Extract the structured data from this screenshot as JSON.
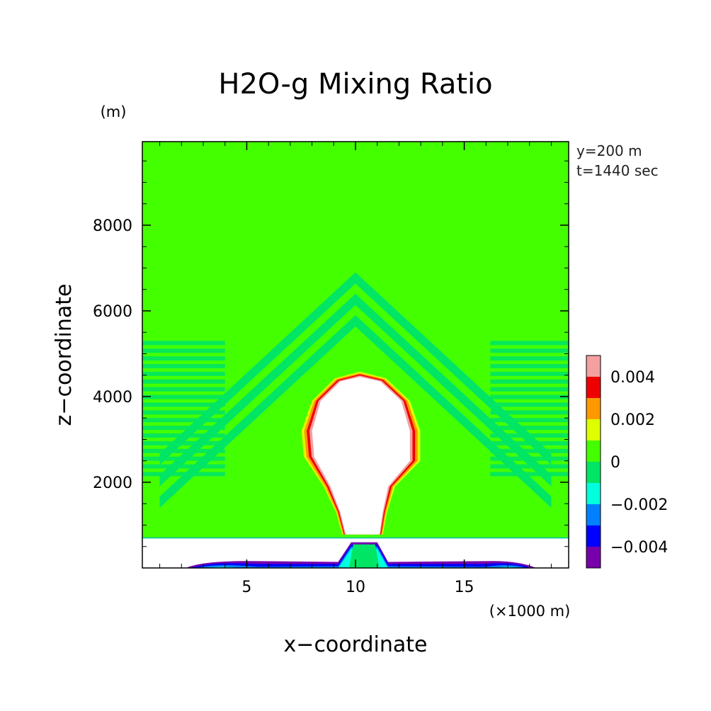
{
  "chart_data": {
    "type": "heatmap",
    "title": "H2O-g Mixing Ratio",
    "xlabel": "x−coordinate",
    "ylabel": "z−coordinate",
    "x_unit": "(×1000 m)",
    "y_unit": "(m)",
    "xlim": [
      0.2,
      19.8
    ],
    "ylim": [
      0,
      9950
    ],
    "x_ticks": [
      5,
      10,
      15
    ],
    "x_tick_labels": [
      "5",
      "10",
      "15"
    ],
    "y_ticks": [
      2000,
      4000,
      6000,
      8000
    ],
    "y_tick_labels": [
      "2000",
      "4000",
      "6000",
      "8000"
    ],
    "annotations": [
      "y=200 m",
      "t=1440 sec"
    ],
    "colorbar": {
      "tick_labels": [
        "0.004",
        "0.002",
        "0",
        "−0.002",
        "−0.004"
      ],
      "tick_values": [
        0.004,
        0.002,
        0,
        -0.002,
        -0.004
      ],
      "levels": [
        {
          "low": 0.004,
          "high": 0.005,
          "color": "#f4a0a0"
        },
        {
          "low": 0.003,
          "high": 0.004,
          "color": "#ee0000"
        },
        {
          "low": 0.002,
          "high": 0.003,
          "color": "#ff9900"
        },
        {
          "low": 0.001,
          "high": 0.002,
          "color": "#ddff00"
        },
        {
          "low": 0.0,
          "high": 0.001,
          "color": "#44ff00"
        },
        {
          "low": -0.001,
          "high": 0.0,
          "color": "#00e664"
        },
        {
          "low": -0.002,
          "high": -0.001,
          "color": "#00ffdd"
        },
        {
          "low": -0.003,
          "high": -0.002,
          "color": "#0080ff"
        },
        {
          "low": -0.004,
          "high": -0.003,
          "color": "#0000ff"
        },
        {
          "low": -0.005,
          "high": -0.004,
          "color": "#7700aa"
        }
      ]
    },
    "field_description": {
      "background_level": 0.0005,
      "plume": {
        "x_center": 10.2,
        "top_z": 4500,
        "neck_z": 800,
        "value": "undefined (white)",
        "rim_levels": [
          0.0045,
          0.0035,
          0.0025,
          0.0015
        ]
      },
      "wave_arcs": {
        "apex_x": 10,
        "apex_z": 6900,
        "level": -0.0005
      },
      "ground_layer": {
        "z_range": [
          0,
          700
        ],
        "value": "undefined (white)",
        "bottom_band_levels": [
          -0.0045,
          -0.0035,
          -0.0025,
          -0.0015
        ]
      }
    }
  }
}
